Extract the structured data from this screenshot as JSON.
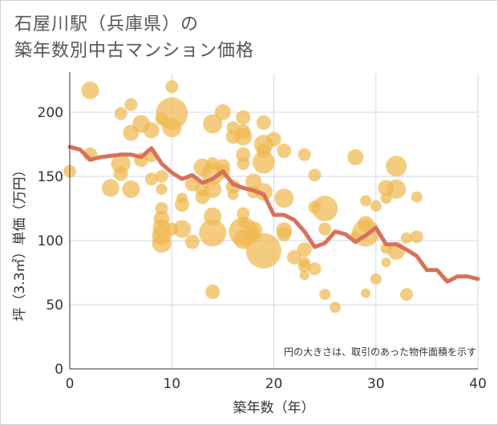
{
  "title": {
    "line1": "石屋川駅（兵庫県）の",
    "line2": "築年数別中古マンション価格"
  },
  "note": "円の大きさは、取引のあった物件面積を示す",
  "colors": {
    "bubble": "#f0b850",
    "line": "#d9705a",
    "grid": "#cfd8e3",
    "axis": "#333333"
  },
  "chart_data": {
    "type": "scatter",
    "xlabel": "築年数（年）",
    "ylabel": "坪（3.3㎡）単価（万円）",
    "xlim": [
      0,
      40
    ],
    "ylim": [
      0,
      230
    ],
    "xticks": [
      0,
      10,
      20,
      30,
      40
    ],
    "yticks": [
      0,
      50,
      100,
      150,
      200
    ],
    "grid": true,
    "bubbles": [
      {
        "x": 0,
        "y": 154,
        "r": 8
      },
      {
        "x": 2,
        "y": 217,
        "r": 11
      },
      {
        "x": 2,
        "y": 167,
        "r": 9
      },
      {
        "x": 4,
        "y": 141,
        "r": 11
      },
      {
        "x": 5,
        "y": 199,
        "r": 8
      },
      {
        "x": 5,
        "y": 160,
        "r": 12
      },
      {
        "x": 5,
        "y": 152,
        "r": 9
      },
      {
        "x": 6,
        "y": 206,
        "r": 8
      },
      {
        "x": 6,
        "y": 184,
        "r": 10
      },
      {
        "x": 6,
        "y": 140,
        "r": 11
      },
      {
        "x": 7,
        "y": 191,
        "r": 11
      },
      {
        "x": 7,
        "y": 163,
        "r": 9
      },
      {
        "x": 8,
        "y": 186,
        "r": 10
      },
      {
        "x": 8,
        "y": 166,
        "r": 8
      },
      {
        "x": 8,
        "y": 148,
        "r": 8
      },
      {
        "x": 9,
        "y": 195,
        "r": 8
      },
      {
        "x": 9,
        "y": 150,
        "r": 8
      },
      {
        "x": 9,
        "y": 140,
        "r": 7
      },
      {
        "x": 9,
        "y": 125,
        "r": 8
      },
      {
        "x": 9,
        "y": 117,
        "r": 10
      },
      {
        "x": 9,
        "y": 110,
        "r": 11
      },
      {
        "x": 9,
        "y": 104,
        "r": 12
      },
      {
        "x": 9,
        "y": 98,
        "r": 12
      },
      {
        "x": 10,
        "y": 220,
        "r": 8
      },
      {
        "x": 10,
        "y": 199,
        "r": 20
      },
      {
        "x": 10,
        "y": 188,
        "r": 12
      },
      {
        "x": 10,
        "y": 109,
        "r": 8
      },
      {
        "x": 11,
        "y": 133,
        "r": 7
      },
      {
        "x": 11,
        "y": 128,
        "r": 9
      },
      {
        "x": 11,
        "y": 109,
        "r": 11
      },
      {
        "x": 12,
        "y": 144,
        "r": 9
      },
      {
        "x": 12,
        "y": 99,
        "r": 9
      },
      {
        "x": 13,
        "y": 157,
        "r": 11
      },
      {
        "x": 13,
        "y": 140,
        "r": 9
      },
      {
        "x": 13,
        "y": 134,
        "r": 9
      },
      {
        "x": 14,
        "y": 191,
        "r": 12
      },
      {
        "x": 14,
        "y": 160,
        "r": 8
      },
      {
        "x": 14,
        "y": 152,
        "r": 14
      },
      {
        "x": 14,
        "y": 140,
        "r": 11
      },
      {
        "x": 14,
        "y": 119,
        "r": 11
      },
      {
        "x": 14,
        "y": 106,
        "r": 17
      },
      {
        "x": 14,
        "y": 60,
        "r": 9
      },
      {
        "x": 15,
        "y": 200,
        "r": 10
      },
      {
        "x": 15,
        "y": 158,
        "r": 9
      },
      {
        "x": 15,
        "y": 154,
        "r": 9
      },
      {
        "x": 16,
        "y": 188,
        "r": 8
      },
      {
        "x": 16,
        "y": 181,
        "r": 9
      },
      {
        "x": 16,
        "y": 142,
        "r": 9
      },
      {
        "x": 16,
        "y": 136,
        "r": 7
      },
      {
        "x": 17,
        "y": 196,
        "r": 9
      },
      {
        "x": 17,
        "y": 185,
        "r": 9
      },
      {
        "x": 17,
        "y": 181,
        "r": 11
      },
      {
        "x": 17,
        "y": 167,
        "r": 9
      },
      {
        "x": 17,
        "y": 160,
        "r": 8
      },
      {
        "x": 17,
        "y": 121,
        "r": 8
      },
      {
        "x": 17,
        "y": 114,
        "r": 7
      },
      {
        "x": 17,
        "y": 107,
        "r": 18
      },
      {
        "x": 17,
        "y": 101,
        "r": 12
      },
      {
        "x": 18,
        "y": 146,
        "r": 10
      },
      {
        "x": 18,
        "y": 138,
        "r": 8
      },
      {
        "x": 18,
        "y": 108,
        "r": 11
      },
      {
        "x": 18,
        "y": 104,
        "r": 9
      },
      {
        "x": 19,
        "y": 192,
        "r": 9
      },
      {
        "x": 19,
        "y": 175,
        "r": 12
      },
      {
        "x": 19,
        "y": 170,
        "r": 9
      },
      {
        "x": 19,
        "y": 161,
        "r": 14
      },
      {
        "x": 19,
        "y": 138,
        "r": 11
      },
      {
        "x": 19,
        "y": 92,
        "r": 22
      },
      {
        "x": 20,
        "y": 179,
        "r": 9
      },
      {
        "x": 21,
        "y": 170,
        "r": 9
      },
      {
        "x": 21,
        "y": 133,
        "r": 12
      },
      {
        "x": 21,
        "y": 108,
        "r": 10
      },
      {
        "x": 21,
        "y": 105,
        "r": 9
      },
      {
        "x": 22,
        "y": 87,
        "r": 9
      },
      {
        "x": 23,
        "y": 167,
        "r": 8
      },
      {
        "x": 23,
        "y": 93,
        "r": 9
      },
      {
        "x": 23,
        "y": 83,
        "r": 7
      },
      {
        "x": 23,
        "y": 80,
        "r": 8
      },
      {
        "x": 23,
        "y": 73,
        "r": 6
      },
      {
        "x": 24,
        "y": 151,
        "r": 8
      },
      {
        "x": 24,
        "y": 126,
        "r": 8
      },
      {
        "x": 24,
        "y": 78,
        "r": 8
      },
      {
        "x": 25,
        "y": 125,
        "r": 16
      },
      {
        "x": 25,
        "y": 109,
        "r": 8
      },
      {
        "x": 25,
        "y": 58,
        "r": 7
      },
      {
        "x": 26,
        "y": 48,
        "r": 7
      },
      {
        "x": 28,
        "y": 165,
        "r": 10
      },
      {
        "x": 28,
        "y": 103,
        "r": 7
      },
      {
        "x": 29,
        "y": 131,
        "r": 7
      },
      {
        "x": 29,
        "y": 106,
        "r": 17
      },
      {
        "x": 29,
        "y": 113,
        "r": 10
      },
      {
        "x": 29,
        "y": 59,
        "r": 6
      },
      {
        "x": 30,
        "y": 127,
        "r": 7
      },
      {
        "x": 30,
        "y": 70,
        "r": 7
      },
      {
        "x": 31,
        "y": 141,
        "r": 10
      },
      {
        "x": 31,
        "y": 133,
        "r": 7
      },
      {
        "x": 31,
        "y": 94,
        "r": 7
      },
      {
        "x": 31,
        "y": 83,
        "r": 6
      },
      {
        "x": 32,
        "y": 158,
        "r": 13
      },
      {
        "x": 32,
        "y": 140,
        "r": 12
      },
      {
        "x": 32,
        "y": 92,
        "r": 11
      },
      {
        "x": 33,
        "y": 102,
        "r": 7
      },
      {
        "x": 33,
        "y": 58,
        "r": 8
      },
      {
        "x": 34,
        "y": 134,
        "r": 7
      },
      {
        "x": 34,
        "y": 103,
        "r": 8
      }
    ],
    "series": [
      {
        "x": [
          0,
          1,
          2,
          3,
          4,
          5,
          6,
          7,
          8,
          9,
          10,
          11,
          12,
          13,
          14,
          15,
          16,
          17,
          18,
          19,
          20,
          21,
          22,
          23,
          24,
          25,
          26,
          27,
          28,
          29,
          30,
          31,
          32,
          33,
          34,
          35,
          36,
          37,
          38,
          39,
          40
        ],
        "y": [
          173,
          171,
          163,
          165,
          166,
          167,
          167,
          165,
          172,
          160,
          153,
          148,
          151,
          145,
          148,
          154,
          144,
          141,
          139,
          136,
          120,
          120,
          116,
          107,
          95,
          98,
          107,
          105,
          99,
          104,
          110,
          97,
          97,
          93,
          88,
          77,
          77,
          68,
          72,
          72,
          70
        ]
      }
    ]
  }
}
